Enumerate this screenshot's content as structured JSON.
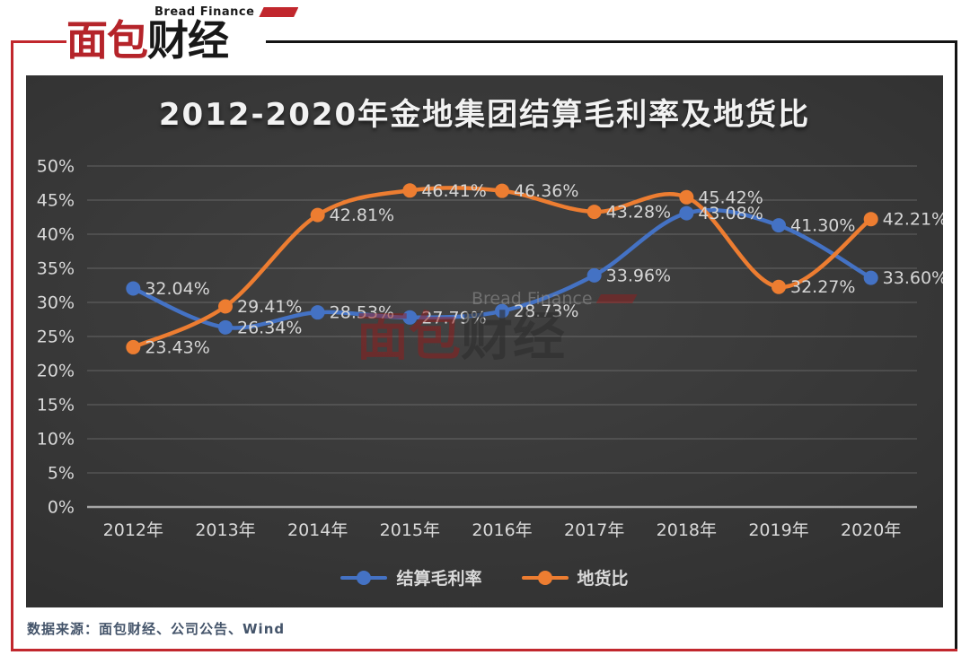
{
  "header": {
    "logo_en": "Bread Finance",
    "logo_cn_red": "面包",
    "logo_cn_dark": "财经",
    "brand_red": "#c1272d"
  },
  "watermark": {
    "en": "Bread Finance",
    "cn_red": "面包",
    "cn_dark": "财经"
  },
  "chart_data": {
    "type": "line",
    "title": "2012-2020年金地集团结算毛利率及地货比",
    "categories": [
      "2012年",
      "2013年",
      "2014年",
      "2015年",
      "2016年",
      "2017年",
      "2018年",
      "2019年",
      "2020年"
    ],
    "series": [
      {
        "name": "结算毛利率",
        "color": "#4472c4",
        "values": [
          32.04,
          26.34,
          28.53,
          27.79,
          28.73,
          33.96,
          43.08,
          41.3,
          33.6
        ]
      },
      {
        "name": "地货比",
        "color": "#ed7d31",
        "values": [
          23.43,
          29.41,
          42.81,
          46.41,
          46.36,
          43.28,
          45.42,
          32.27,
          42.21
        ]
      }
    ],
    "ylim": [
      0,
      50
    ],
    "ytick_step": 5,
    "ytick_suffix": "%",
    "label_decimals": 2,
    "label_suffix": "%",
    "grid": true,
    "smooth_lines": true,
    "legend_position": "bottom",
    "background": "dark"
  },
  "footer": {
    "source": "数据来源：面包财经、公司公告、Wind"
  }
}
